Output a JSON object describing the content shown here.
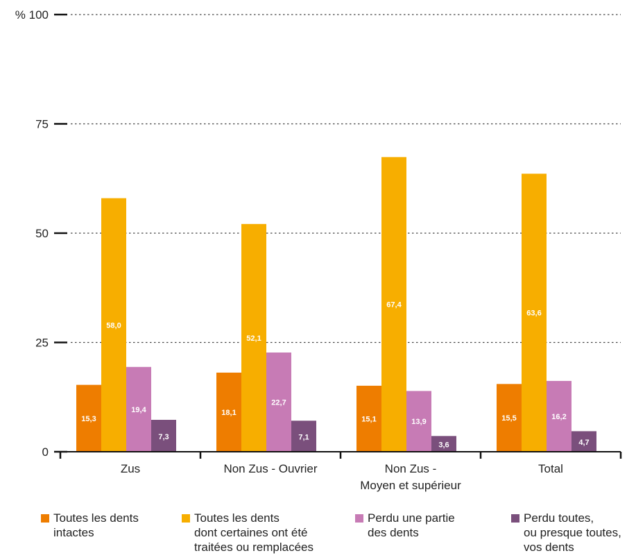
{
  "chart_data": {
    "type": "bar",
    "y_unit_label": "%",
    "ylim": [
      0,
      100
    ],
    "yticks": [
      0,
      25,
      50,
      75,
      100
    ],
    "grid": "dotted horizontal",
    "legend_position": "bottom",
    "categories": [
      "Zus",
      "Non Zus - Ouvrier",
      "Non Zus -\nMoyen et supérieur",
      "Total"
    ],
    "series": [
      {
        "name": "Toutes les dents\nintactes",
        "color": "#ee7d00",
        "values": [
          15.3,
          18.1,
          15.1,
          15.5
        ],
        "labels": [
          "15,3",
          "18,1",
          "15,1",
          "15,5"
        ]
      },
      {
        "name": "Toutes les dents\ndont certaines ont été\ntraitées ou remplacées",
        "color": "#f7ae00",
        "values": [
          58.0,
          52.1,
          67.4,
          63.6
        ],
        "labels": [
          "58,0",
          "52,1",
          "67,4",
          "63,6"
        ]
      },
      {
        "name": "Perdu une partie\ndes dents",
        "color": "#c77bb5",
        "values": [
          19.4,
          22.7,
          13.9,
          16.2
        ],
        "labels": [
          "19,4",
          "22,7",
          "13,9",
          "16,2"
        ]
      },
      {
        "name": "Perdu toutes,\nou presque toutes,\nvos dents",
        "color": "#7a4f7c",
        "values": [
          7.3,
          7.1,
          3.6,
          4.7
        ],
        "labels": [
          "7,3",
          "7,1",
          "3,6",
          "4,7"
        ]
      }
    ]
  }
}
